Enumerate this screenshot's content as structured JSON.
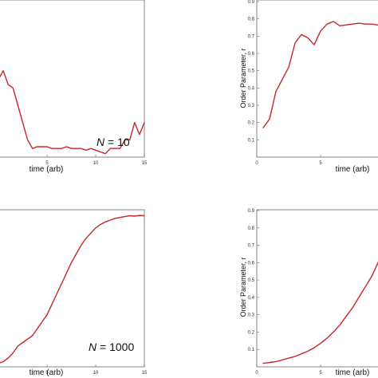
{
  "colors": {
    "line": "#c8262c",
    "frame": "#666666"
  },
  "chart_data": [
    {
      "type": "line",
      "xlabel": "time (arb)",
      "ylabel": "",
      "annotation": {
        "var": "N",
        "rest": " = 10"
      },
      "xlim": [
        0,
        15
      ],
      "ylim": [
        0,
        0.9
      ],
      "x_ticks": [
        "5",
        "10",
        "15"
      ],
      "y_ticks": [],
      "grid": false,
      "series": [
        {
          "x": [
            0,
            0.5,
            1,
            1.5,
            2,
            2.5,
            3,
            3.5,
            4,
            4.5,
            5,
            5.5,
            6,
            6.5,
            7,
            7.5,
            8,
            8.5,
            9,
            9.5,
            10,
            10.5,
            11,
            11.5,
            12,
            12.5,
            13,
            13.5,
            14,
            14.5,
            15
          ],
          "y": [
            0.45,
            0.5,
            0.42,
            0.4,
            0.3,
            0.2,
            0.1,
            0.05,
            0.06,
            0.06,
            0.06,
            0.05,
            0.05,
            0.05,
            0.06,
            0.05,
            0.05,
            0.05,
            0.04,
            0.05,
            0.04,
            0.03,
            0.02,
            0.05,
            0.05,
            0.05,
            0.1,
            0.1,
            0.2,
            0.13,
            0.2
          ]
        }
      ]
    },
    {
      "type": "line",
      "xlabel": "time (arb)",
      "ylabel": "Order Parameter, r",
      "xlim": [
        0,
        10
      ],
      "ylim": [
        0,
        0.9
      ],
      "x_ticks": [
        "0",
        "5"
      ],
      "y_ticks": [
        "0.1",
        "0.2",
        "0.3",
        "0.4",
        "0.5",
        "0.6",
        "0.7",
        "0.8",
        "0.9"
      ],
      "grid": false,
      "series": [
        {
          "x": [
            0.5,
            1,
            1.5,
            2,
            2.5,
            3,
            3.5,
            4,
            4.5,
            5,
            5.5,
            6,
            6.5,
            7,
            7.5,
            8,
            8.5,
            9,
            9.5,
            10
          ],
          "y": [
            0.17,
            0.22,
            0.38,
            0.45,
            0.52,
            0.66,
            0.71,
            0.69,
            0.65,
            0.73,
            0.77,
            0.785,
            0.76,
            0.765,
            0.77,
            0.775,
            0.77,
            0.77,
            0.765,
            0.775
          ]
        }
      ]
    },
    {
      "type": "line",
      "xlabel": "time (arb)",
      "ylabel": "",
      "annotation": {
        "var": "N",
        "rest": " = 1000"
      },
      "xlim": [
        0,
        15
      ],
      "ylim": [
        0,
        0.9
      ],
      "x_ticks": [
        "5",
        "10",
        "15"
      ],
      "y_ticks": [],
      "grid": false,
      "series": [
        {
          "x": [
            0,
            0.5,
            1,
            1.5,
            2,
            2.5,
            3,
            3.5,
            4,
            4.5,
            5,
            5.5,
            6,
            6.5,
            7,
            7.5,
            8,
            8.5,
            9,
            9.5,
            10,
            10.5,
            11,
            11.5,
            12,
            12.5,
            13,
            13.5,
            14,
            14.5,
            15
          ],
          "y": [
            0.02,
            0.03,
            0.05,
            0.08,
            0.12,
            0.14,
            0.16,
            0.18,
            0.22,
            0.26,
            0.3,
            0.36,
            0.42,
            0.48,
            0.54,
            0.6,
            0.65,
            0.7,
            0.74,
            0.77,
            0.8,
            0.82,
            0.835,
            0.845,
            0.855,
            0.86,
            0.865,
            0.87,
            0.868,
            0.872,
            0.87
          ]
        }
      ]
    },
    {
      "type": "line",
      "xlabel": "time (arb)",
      "ylabel": "Order Parameter, r",
      "xlim": [
        0,
        10
      ],
      "ylim": [
        0,
        0.9
      ],
      "x_ticks": [
        "0",
        "5"
      ],
      "y_ticks": [
        "0.1",
        "0.2",
        "0.3",
        "0.4",
        "0.5",
        "0.6",
        "0.7",
        "0.8",
        "0.9"
      ],
      "grid": false,
      "series": [
        {
          "x": [
            0.5,
            1,
            1.5,
            2,
            2.5,
            3,
            3.5,
            4,
            4.5,
            5,
            5.5,
            6,
            6.5,
            7,
            7.5,
            8,
            8.5,
            9,
            9.5,
            10
          ],
          "y": [
            0.02,
            0.025,
            0.03,
            0.04,
            0.05,
            0.06,
            0.075,
            0.09,
            0.11,
            0.135,
            0.165,
            0.2,
            0.24,
            0.29,
            0.34,
            0.4,
            0.46,
            0.52,
            0.6,
            0.66
          ]
        }
      ]
    }
  ]
}
